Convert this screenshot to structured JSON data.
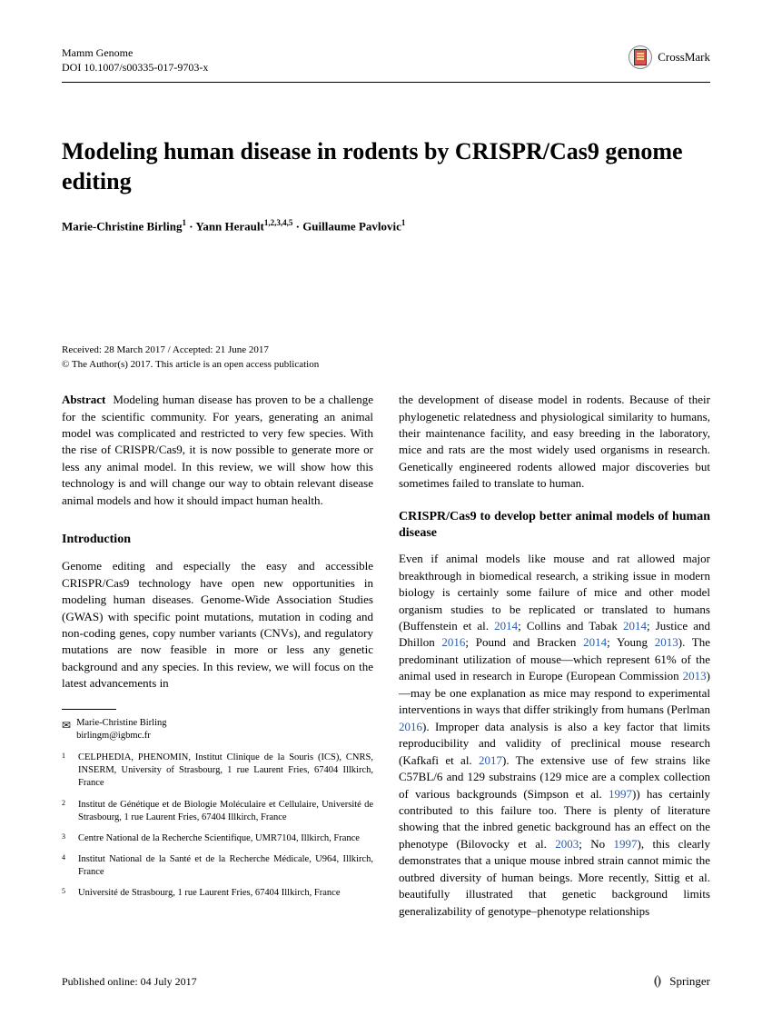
{
  "header": {
    "journal": "Mamm Genome",
    "doi": "DOI 10.1007/s00335-017-9703-x",
    "crossmark_label": "CrossMark"
  },
  "title": "Modeling human disease in rodents by CRISPR/Cas9 genome editing",
  "authors_html": "Marie-Christine Birling<sup>1</sup> · Yann Herault<sup>1,2,3,4,5</sup> · Guillaume Pavlovic<sup>1</sup>",
  "dates": "Received: 28 March 2017 / Accepted: 21 June 2017",
  "copyright": "© The Author(s) 2017. This article is an open access publication",
  "abstract": {
    "label": "Abstract",
    "text": "Modeling human disease has proven to be a challenge for the scientific community. For years, generating an animal model was complicated and restricted to very few species. With the rise of CRISPR/Cas9, it is now possible to generate more or less any animal model. In this review, we will show how this technology is and will change our way to obtain relevant disease animal models and how it should impact human health."
  },
  "introduction": {
    "heading": "Introduction",
    "text": "Genome editing and especially the easy and accessible CRISPR/Cas9 technology have open new opportunities in modeling human diseases. Genome-Wide Association Studies (GWAS) with specific point mutations, mutation in coding and non-coding genes, copy number variants (CNVs), and regulatory mutations are now feasible in more or less any genetic background and any species. In this review, we will focus on the latest advancements in"
  },
  "right_col": {
    "intro_continuation": "the development of disease model in rodents. Because of their phylogenetic relatedness and physiological similarity to humans, their maintenance facility, and easy breeding in the laboratory, mice and rats are the most widely used organisms in research. Genetically engineered rodents allowed major discoveries but sometimes failed to translate to human.",
    "section_heading": "CRISPR/Cas9 to develop better animal models of human disease",
    "body_html": "Even if animal models like mouse and rat allowed major breakthrough in biomedical research, a striking issue in modern biology is certainly some failure of mice and other model organism studies to be replicated or translated to humans (Buffenstein et al. <span class=\"cite\">2014</span>; Collins and Tabak <span class=\"cite\">2014</span>; Justice and Dhillon <span class=\"cite\">2016</span>; Pound and Bracken <span class=\"cite\">2014</span>; Young <span class=\"cite\">2013</span>). The predominant utilization of mouse—which represent 61% of the animal used in research in Europe (European Commission <span class=\"cite\">2013</span>)—may be one explanation as mice may respond to experimental interventions in ways that differ strikingly from humans (Perlman <span class=\"cite\">2016</span>). Improper data analysis is also a key factor that limits reproducibility and validity of preclinical mouse research (Kafkafi et al. <span class=\"cite\">2017</span>). The extensive use of few strains like C57BL/6 and 129 substrains (129 mice are a complex collection of various backgrounds (Simpson et al. <span class=\"cite\">1997</span>)) has certainly contributed to this failure too. There is plenty of literature showing that the inbred genetic background has an effect on the phenotype (Bilovocky et al. <span class=\"cite\">2003</span>; No <span class=\"cite\">1997</span>), this clearly demonstrates that a unique mouse inbred strain cannot mimic the outbred diversity of human beings. More recently, Sittig et al. beautifully illustrated that genetic background limits generalizability of genotype–phenotype relationships"
  },
  "correspondence": {
    "name": "Marie-Christine Birling",
    "email": "birlingm@igbmc.fr"
  },
  "affiliations": [
    {
      "num": "1",
      "text": "CELPHEDIA, PHENOMIN, Institut Clinique de la Souris (ICS), CNRS, INSERM, University of Strasbourg, 1 rue Laurent Fries, 67404 Illkirch, France"
    },
    {
      "num": "2",
      "text": "Institut de Génétique et de Biologie Moléculaire et Cellulaire, Université de Strasbourg, 1 rue Laurent Fries, 67404 Illkirch, France"
    },
    {
      "num": "3",
      "text": "Centre National de la Recherche Scientifique, UMR7104, Illkirch, France"
    },
    {
      "num": "4",
      "text": "Institut National de la Santé et de la Recherche Médicale, U964, Illkirch, France"
    },
    {
      "num": "5",
      "text": "Université de Strasbourg, 1 rue Laurent Fries, 67404 Illkirch, France"
    }
  ],
  "footer": {
    "published": "Published online: 04 July 2017",
    "publisher": "Springer"
  }
}
